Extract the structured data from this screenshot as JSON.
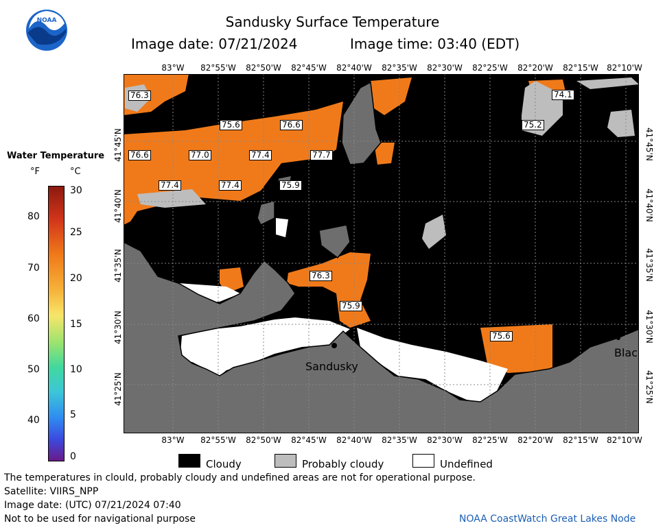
{
  "header": {
    "title": "Sandusky Surface Temperature",
    "image_date": "Image date: 07/21/2024",
    "image_time": "Image time: 03:40 (EDT)"
  },
  "logo": {
    "text": "NOAA"
  },
  "longitudes": [
    "83°W",
    "82°55'W",
    "82°50'W",
    "82°45'W",
    "82°40'W",
    "82°35'W",
    "82°30'W",
    "82°25'W",
    "82°20'W",
    "82°15'W",
    "82°10'W"
  ],
  "latitudes": [
    "41°45'N",
    "41°40'N",
    "41°35'N",
    "41°30'N",
    "41°25'N"
  ],
  "legend": {
    "title": "Water Temperature",
    "unit_f": "°F",
    "unit_c": "°C",
    "fahrenheit_ticks": [
      "80",
      "70",
      "60",
      "50",
      "40"
    ],
    "celsius_ticks": [
      "30",
      "25",
      "20",
      "15",
      "10",
      "5",
      "0"
    ]
  },
  "temperature_labels": [
    "76.3",
    "75.6",
    "76.6",
    "76.6",
    "77.0",
    "77.4",
    "77.7",
    "77.4",
    "77.4",
    "75.9",
    "76.3",
    "75.9",
    "75.6",
    "74.1",
    "75.2"
  ],
  "places": {
    "sandusky": "Sandusky",
    "black": "Blac"
  },
  "cloud_legend": {
    "cloudy": "Cloudy",
    "probably_cloudy": "Probably cloudy",
    "undefined": "Undefined"
  },
  "footer": {
    "disclaimer": "The temperatures in clould, probably cloudy and undefined areas are not for operational purpose.",
    "satellite": "Satellite: VIIRS_NPP",
    "utc_date": "Image date: (UTC) 07/21/2024  07:40",
    "navigation": "Not to be used for navigational purpose",
    "credit": "NOAA CoastWatch Great Lakes Node"
  },
  "colors": {
    "cloudy": "#000000",
    "probably_cloudy": "#bdbdbd",
    "land": "#6e6e6e",
    "warm_water": "#f07a1a",
    "undefined": "#ffffff"
  }
}
